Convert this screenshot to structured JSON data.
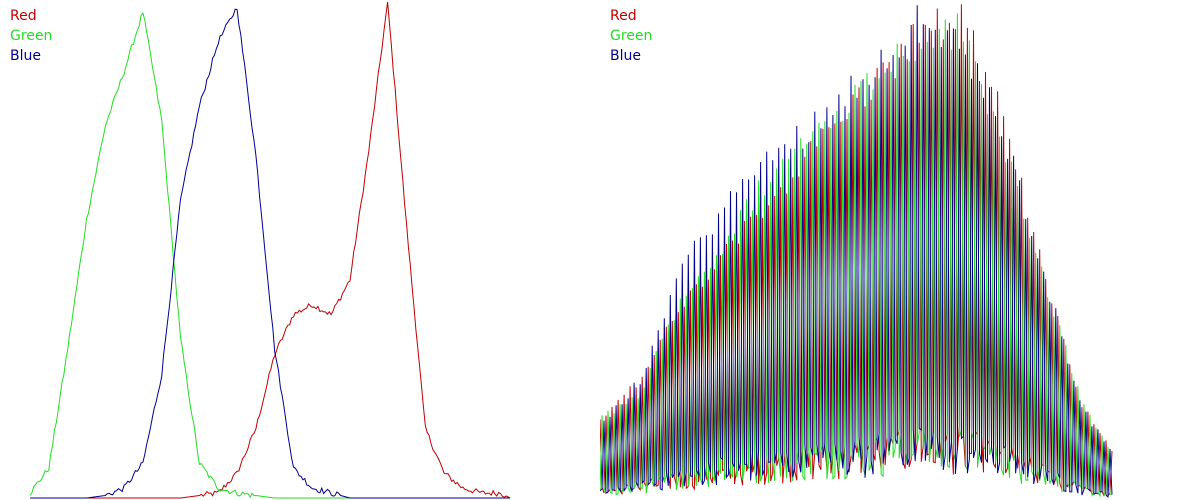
{
  "colors": {
    "red": "#c00000",
    "green": "#22dd22",
    "blue": "#000090",
    "background": "#ffffff"
  },
  "chart_data": [
    {
      "type": "line",
      "title": "",
      "xlabel": "",
      "ylabel": "",
      "xlim": [
        0,
        255
      ],
      "ylim": [
        0,
        1
      ],
      "grid": false,
      "legend_position": "top-left",
      "legend": [
        "Red",
        "Green",
        "Blue"
      ],
      "x": [
        0,
        10,
        20,
        30,
        40,
        50,
        60,
        70,
        80,
        90,
        100,
        110,
        120,
        130,
        140,
        150,
        160,
        170,
        180,
        190,
        200,
        210,
        220,
        230,
        240,
        250,
        255
      ],
      "series": [
        {
          "name": "Red",
          "color": "red",
          "values": [
            0.0,
            0.0,
            0.0,
            0.0,
            0.0,
            0.0,
            0.0,
            0.0,
            0.0,
            0.005,
            0.01,
            0.05,
            0.14,
            0.29,
            0.37,
            0.39,
            0.37,
            0.44,
            0.7,
            1.0,
            0.55,
            0.14,
            0.05,
            0.02,
            0.01,
            0.01,
            0.0
          ]
        },
        {
          "name": "Green",
          "color": "green",
          "values": [
            0.01,
            0.06,
            0.3,
            0.56,
            0.75,
            0.86,
            0.98,
            0.76,
            0.32,
            0.07,
            0.02,
            0.01,
            0.005,
            0.0,
            0.0,
            0.0,
            0.0,
            0.0,
            0.0,
            0.0,
            0.0,
            0.0,
            0.0,
            0.0,
            0.0,
            0.0,
            0.0
          ]
        },
        {
          "name": "Blue",
          "color": "blue",
          "values": [
            0.0,
            0.0,
            0.0,
            0.0,
            0.005,
            0.02,
            0.07,
            0.25,
            0.6,
            0.79,
            0.92,
            0.99,
            0.69,
            0.3,
            0.06,
            0.02,
            0.01,
            0.0,
            0.0,
            0.0,
            0.0,
            0.0,
            0.0,
            0.0,
            0.0,
            0.0,
            0.0
          ]
        }
      ]
    },
    {
      "type": "line",
      "title": "",
      "xlabel": "",
      "ylabel": "",
      "xlim": [
        0,
        255
      ],
      "ylim": [
        0,
        1
      ],
      "grid": false,
      "legend_position": "top-left",
      "legend": [
        "Red",
        "Green",
        "Blue"
      ],
      "note_type": "comb",
      "x": [
        0,
        20,
        40,
        60,
        80,
        100,
        120,
        140,
        160,
        180,
        200,
        220,
        240,
        255
      ],
      "series": [
        {
          "name": "Red",
          "color": "red",
          "values": [
            0.17,
            0.25,
            0.4,
            0.5,
            0.6,
            0.7,
            0.8,
            0.88,
            0.98,
            1.0,
            0.8,
            0.5,
            0.2,
            0.1
          ]
        },
        {
          "name": "Green",
          "color": "green",
          "values": [
            0.17,
            0.22,
            0.42,
            0.52,
            0.65,
            0.74,
            0.82,
            0.9,
            0.96,
            0.98,
            0.76,
            0.48,
            0.2,
            0.1
          ]
        },
        {
          "name": "Blue",
          "color": "blue",
          "values": [
            0.15,
            0.25,
            0.48,
            0.6,
            0.7,
            0.76,
            0.84,
            0.92,
            1.0,
            0.94,
            0.78,
            0.49,
            0.19,
            0.1
          ]
        }
      ]
    }
  ]
}
